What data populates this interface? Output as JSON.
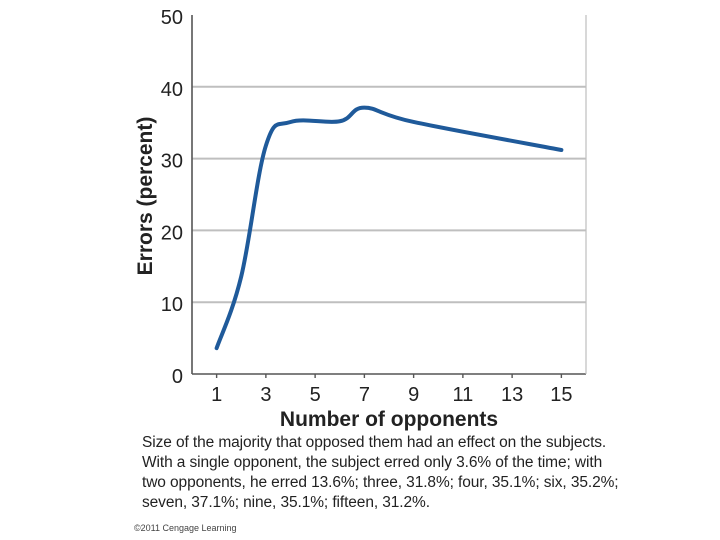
{
  "chart_data": {
    "type": "line",
    "xlabel": "Number of opponents",
    "ylabel": "Errors (percent)",
    "x_ticks": [
      "1",
      "3",
      "5",
      "7",
      "9",
      "11",
      "13",
      "15"
    ],
    "y_ticks": [
      "0",
      "10",
      "20",
      "30",
      "40",
      "50"
    ],
    "xlim": [
      0,
      16
    ],
    "ylim": [
      0,
      50
    ],
    "grid": "horizontal",
    "series": [
      {
        "x": [
          1,
          2,
          3,
          4,
          6,
          7,
          9,
          15
        ],
        "values": [
          3.6,
          13.6,
          31.8,
          35.1,
          35.2,
          37.1,
          35.1,
          31.2
        ]
      }
    ],
    "colors": {
      "line": "#1f5a9a",
      "grid": "#bfbfbf",
      "axis": "#555555"
    }
  },
  "caption": {
    "lines": [
      "Size of the majority that opposed them had an effect on the subjects.",
      "With a single opponent, the subject erred only 3.6% of the time; with",
      "two opponents, he erred 13.6%; three, 31.8%; four, 35.1%; six, 35.2%;",
      "seven, 37.1%; nine, 35.1%; fifteen, 31.2%."
    ]
  },
  "copyright": "©2011 Cengage Learning"
}
